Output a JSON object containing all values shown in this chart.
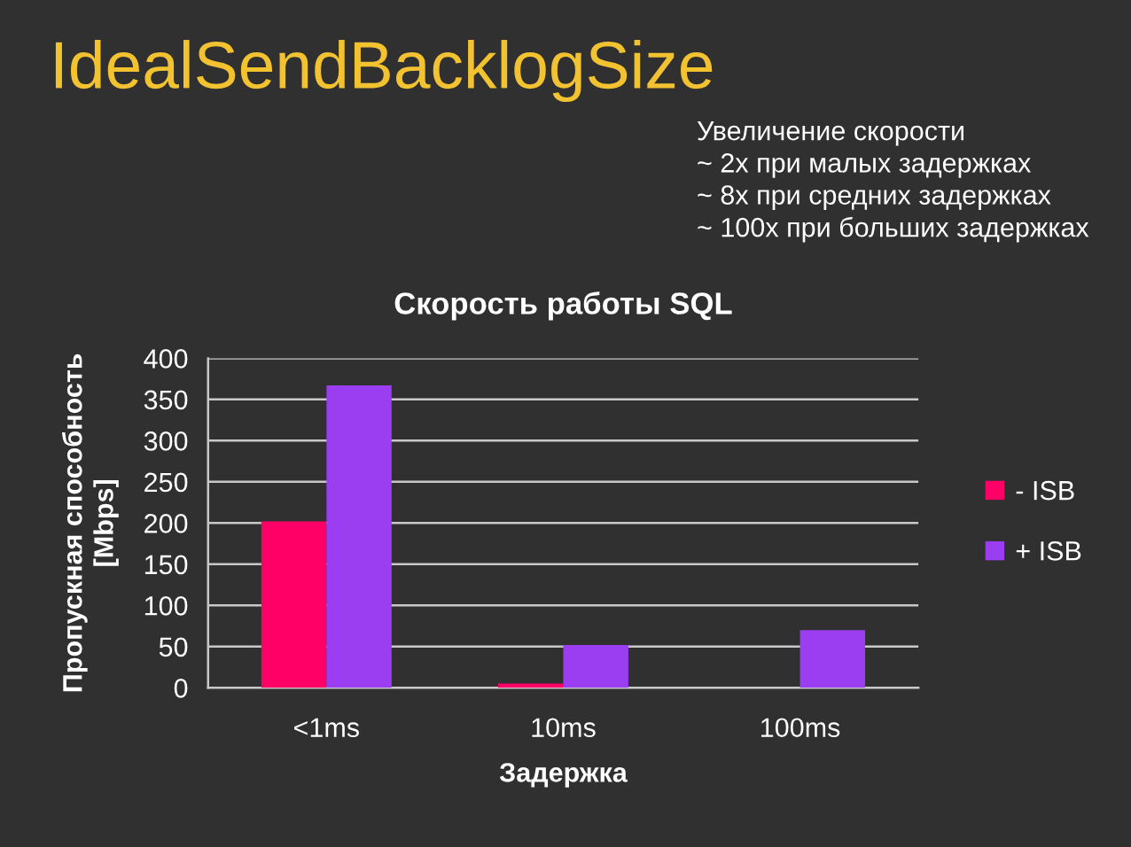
{
  "chart_data": {
    "type": "bar",
    "title": "IdealSendBacklogSize",
    "subtitle": "Скорость работы SQL",
    "annotations": [
      "Увеличение скорости\n~ 2x при малых задержках\n~ 8x при средних задержках\n~ 100x при больших задержках"
    ],
    "xlabel": "Задержка",
    "ylabel": "Пропускная способность\n[Mbps]",
    "categories": [
      "<1ms",
      "10ms",
      "100ms"
    ],
    "series": [
      {
        "name": "- ISB",
        "color": "#ff0066",
        "values": [
          202,
          5,
          null
        ]
      },
      {
        "name": "+ ISB",
        "color": "#9b3df0",
        "values": [
          367,
          52,
          70
        ]
      }
    ],
    "ylim": [
      0,
      400
    ],
    "yticks": [
      0,
      50,
      100,
      150,
      200,
      250,
      300,
      350,
      400
    ],
    "grid": "y",
    "legend": "right"
  }
}
